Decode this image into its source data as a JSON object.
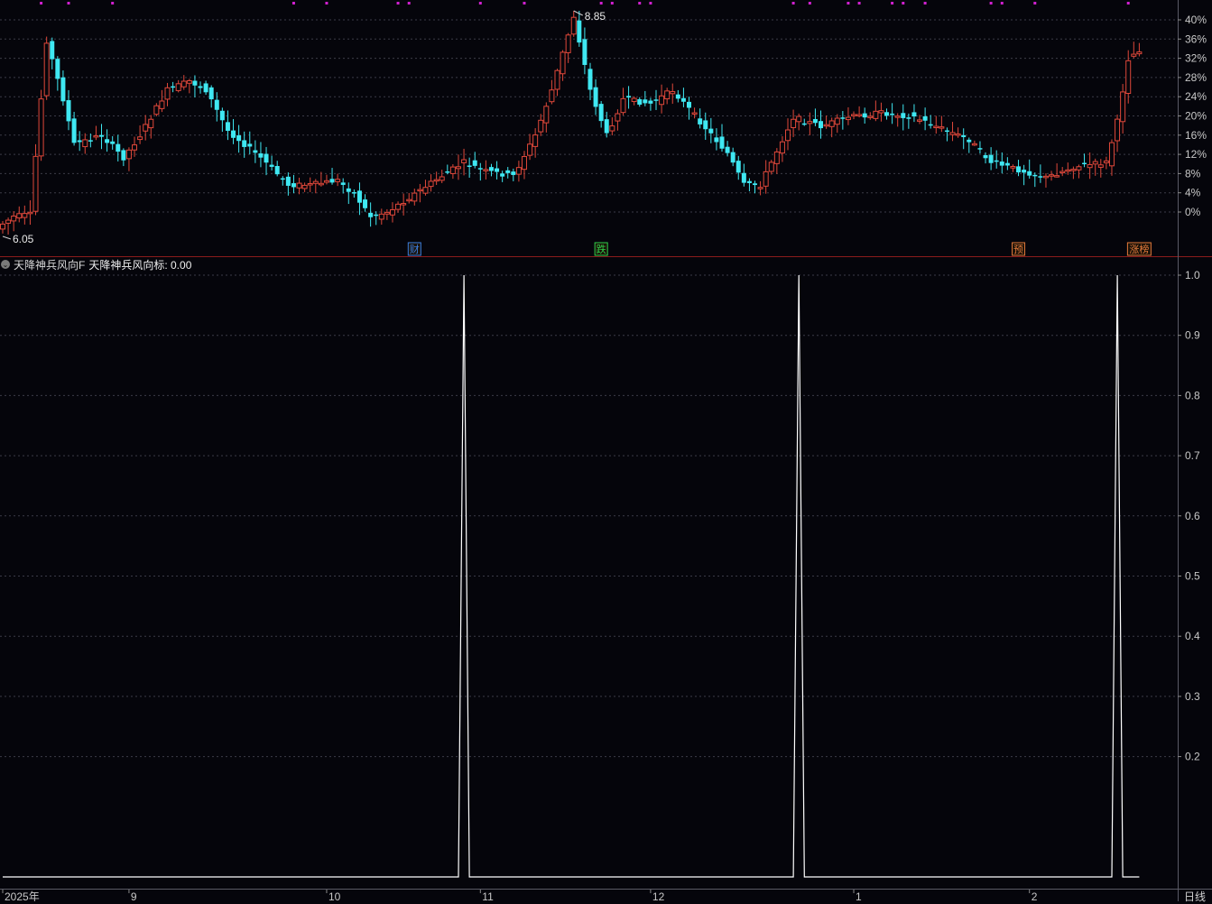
{
  "chart_data": [
    {
      "type": "candlestick",
      "panel": "price",
      "y_axis_ticks": [
        "40%",
        "36%",
        "32%",
        "28%",
        "24%",
        "20%",
        "16%",
        "12%",
        "8%",
        "4%",
        "0%"
      ],
      "high_label": "8.85",
      "low_label": "6.05",
      "colors": {
        "up": "#e0483a",
        "down": "#3fe8f2",
        "marker": "#d020d0"
      },
      "events": [
        {
          "label": "财",
          "index": 75,
          "color": "#3a7ee0"
        },
        {
          "label": "跌",
          "index": 109,
          "color": "#2fd04a"
        },
        {
          "label": "预",
          "index": 185,
          "color": "#e0783a"
        },
        {
          "label": "涨榜",
          "index": 207,
          "color": "#e0783a"
        }
      ],
      "marker_indices": [
        7,
        12,
        20,
        53,
        59,
        72,
        74,
        87,
        95,
        109,
        111,
        116,
        118,
        144,
        147,
        154,
        156,
        162,
        164,
        168,
        180,
        182,
        188,
        205
      ]
    },
    {
      "type": "line",
      "panel": "indicator",
      "indicator_name": "天降神兵风向F",
      "value_label": "天降神兵风向标: 0.00",
      "y_ticks": [
        "1.0",
        "0.9",
        "0.8",
        "0.7",
        "0.6",
        "0.5",
        "0.4",
        "0.3",
        "0.2"
      ],
      "ylim": [
        0,
        1
      ],
      "n_points": 208,
      "spikes": [
        {
          "index": 84,
          "value": 1.0
        },
        {
          "index": 145,
          "value": 1.0
        },
        {
          "index": 203,
          "value": 1.0
        }
      ],
      "baseline": 0.0,
      "line_color": "#ffffff"
    }
  ],
  "x_axis_labels": [
    {
      "text": "2025年",
      "index": 0
    },
    {
      "text": "9",
      "index": 23
    },
    {
      "text": "10",
      "index": 59
    },
    {
      "text": "11",
      "index": 87
    },
    {
      "text": "12",
      "index": 118
    },
    {
      "text": "1",
      "index": 155
    },
    {
      "text": "2",
      "index": 187
    }
  ],
  "period": "日线"
}
